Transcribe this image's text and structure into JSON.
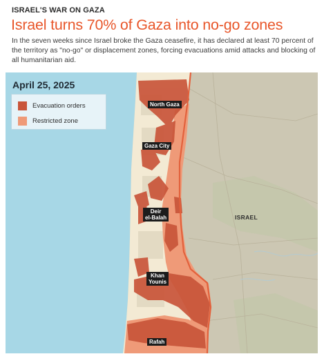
{
  "header": {
    "kicker": "ISRAEL'S WAR ON GAZA",
    "headline": "Israel turns 70% of Gaza into no-go zones",
    "dek": "In the seven weeks since Israel broke the Gaza ceasefire, it has declared at least 70 percent of the territory as \"no-go\" or displacement zones, forcing evacuations amid attacks and blocking of all humanitarian aid."
  },
  "map": {
    "date": "April 25, 2025",
    "legend": [
      {
        "label": "Evacuation orders",
        "color": "#c9553a"
      },
      {
        "label": "Restricted zone",
        "color": "#ef9a78"
      }
    ],
    "places": {
      "north_gaza": "North Gaza",
      "gaza_city": "Gaza City",
      "deir_line1": "Deir",
      "deir_line2": "el-Balah",
      "khan_line1": "Khan",
      "khan_line2": "Younis",
      "rafah": "Rafah"
    },
    "country_label": "ISRAEL",
    "colors": {
      "sea": "#a7d7e6",
      "israel_land": "#ccc7b3",
      "gaza_land": "#f3ead4",
      "evacuation": "#c9553a",
      "restricted": "#ef9a78",
      "border": "#e2613c"
    }
  }
}
